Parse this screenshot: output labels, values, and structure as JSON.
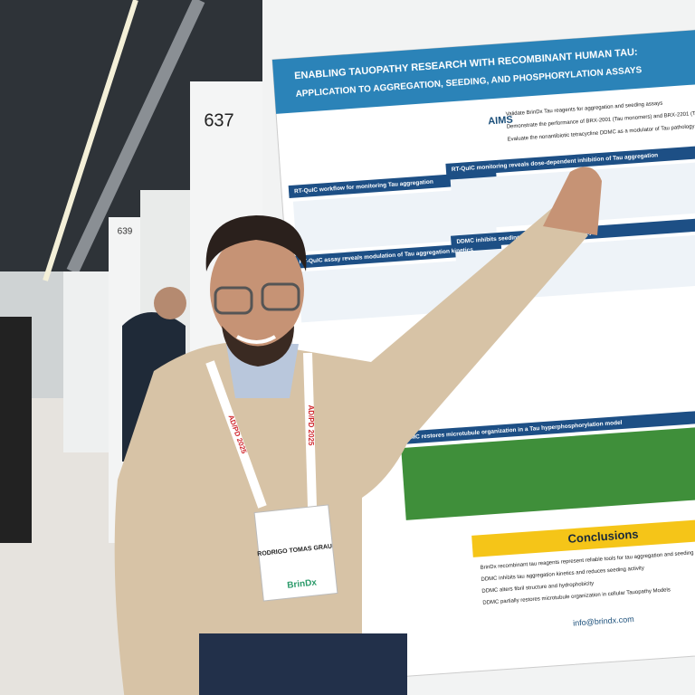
{
  "booth_number": "637",
  "neighbor_booth": "639",
  "poster": {
    "title": "ENABLING TAUOPATHY RESEARCH WITH RECOMBINANT HUMAN TAU:",
    "subtitle": "APPLICATION TO AGGREGATION, SEEDING, AND PHOSPHORYLATION ASSAYS",
    "aims_label": "AIMS",
    "aims": [
      "Validate BrinDx Tau reagents for aggregation and seeding assays",
      "Demonstrate the performance of BRX-2001 (Tau monomers) and BRX-2201 (Tau PFFs)",
      "Evaluate the nonantibiotic tetracycline DDMC as a modulator of Tau pathology"
    ],
    "sections": [
      "RT-QuIC workflow for monitoring Tau aggregation",
      "RT-QuIC monitoring reveals dose-dependent inhibition of Tau aggregation",
      "RT-QuIC assay reveals modulation of Tau aggregation kinetics",
      "DDMC inhibits seeding activity in RT-QuIC assays",
      "DDMC restores microtubule organization in a Tau hyperphosphorylation model"
    ],
    "conclusions_title": "Conclusions",
    "conclusions": [
      "BrinDx recombinant tau reagents represent reliable tools for tau aggregation and seeding",
      "DDMC inhibits tau aggregation kinetics and reduces seeding activity",
      "DDMC alters fibril structure and hydrophobicity",
      "DDMC partially restores microtubule organization in cellular Tauopathy Models"
    ],
    "contact": "info@brindx.com"
  },
  "badge": {
    "name": "RODRIGO TOMAS GRAU",
    "company": "BrinDx"
  },
  "lanyard": "AD/PD 2025"
}
